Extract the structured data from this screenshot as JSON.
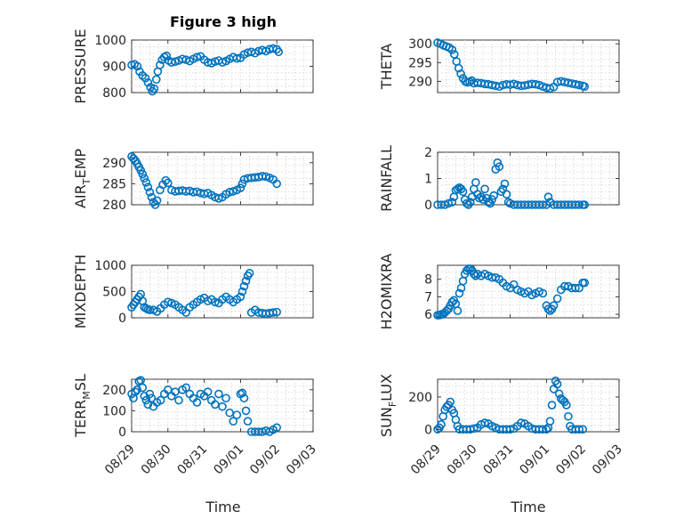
{
  "figure": {
    "title": "Figure 3 high",
    "marker_color": "#0072BD",
    "marker_style": "open-circle",
    "grid": "dotted"
  },
  "chart_data": [
    {
      "type": "scatter",
      "ylabel": "PRESSURE",
      "title": "Figure 3 high",
      "xlim": [
        "08/29",
        "09/03"
      ],
      "ylim": [
        800,
        1000
      ],
      "yticks": [
        "800",
        "900",
        "1000"
      ],
      "xticks": [
        "08/29",
        "08/30",
        "08/31",
        "09/01",
        "09/02",
        "09/03"
      ],
      "x_days": [
        0,
        0.08,
        0.16,
        0.22,
        0.3,
        0.38,
        0.45,
        0.52,
        0.57,
        0.62,
        0.68,
        0.72,
        0.78,
        0.84,
        0.9,
        0.96,
        1.02,
        1.1,
        1.2,
        1.3,
        1.4,
        1.5,
        1.6,
        1.7,
        1.8,
        1.9,
        2.0,
        2.1,
        2.2,
        2.3,
        2.4,
        2.5,
        2.6,
        2.7,
        2.8,
        2.9,
        3.0,
        3.1,
        3.2,
        3.3,
        3.4,
        3.5,
        3.6,
        3.7,
        3.8,
        3.9,
        4.0,
        4.05
      ],
      "values": [
        905,
        908,
        900,
        880,
        865,
        855,
        838,
        820,
        805,
        815,
        850,
        880,
        905,
        925,
        935,
        940,
        922,
        915,
        918,
        922,
        928,
        925,
        920,
        928,
        935,
        938,
        925,
        915,
        912,
        918,
        922,
        915,
        920,
        928,
        935,
        930,
        932,
        945,
        952,
        955,
        950,
        958,
        962,
        958,
        965,
        968,
        965,
        955
      ]
    },
    {
      "type": "scatter",
      "ylabel": "THETA",
      "xlim": [
        "08/29",
        "09/03"
      ],
      "ylim": [
        287,
        301
      ],
      "yticks": [
        "290",
        "295",
        "300"
      ],
      "xticks": [
        "08/29",
        "08/30",
        "08/31",
        "09/01",
        "09/02",
        "09/03"
      ],
      "x_days": [
        0,
        0.08,
        0.16,
        0.24,
        0.32,
        0.4,
        0.46,
        0.52,
        0.58,
        0.64,
        0.7,
        0.76,
        0.82,
        0.88,
        0.94,
        1.0,
        1.1,
        1.2,
        1.3,
        1.4,
        1.5,
        1.6,
        1.7,
        1.8,
        1.9,
        2.0,
        2.1,
        2.2,
        2.3,
        2.4,
        2.5,
        2.6,
        2.7,
        2.8,
        2.9,
        3.0,
        3.1,
        3.2,
        3.3,
        3.4,
        3.5,
        3.6,
        3.7,
        3.8,
        3.9,
        4.0,
        4.05
      ],
      "values": [
        300.3,
        300,
        299.6,
        299.3,
        299,
        298.4,
        297.2,
        295.3,
        293.5,
        292,
        290.8,
        290,
        289.7,
        289.9,
        290.2,
        289.5,
        289.6,
        289.5,
        289.3,
        289.2,
        289,
        288.8,
        288.6,
        289,
        289.2,
        289.1,
        289.3,
        289,
        288.8,
        288.9,
        289.1,
        289.3,
        289.2,
        289,
        288.6,
        288.3,
        288.1,
        288.5,
        289.8,
        290,
        289.8,
        289.6,
        289.4,
        289.2,
        289,
        288.8,
        288.6
      ]
    },
    {
      "type": "scatter",
      "ylabel": "AIR_TEMP",
      "ylabel_display": [
        "AIR",
        "T",
        "EMP"
      ],
      "xlim": [
        "08/29",
        "09/03"
      ],
      "ylim": [
        280,
        292.5
      ],
      "yticks": [
        "280",
        "285",
        "290"
      ],
      "xticks": [
        "08/29",
        "08/30",
        "08/31",
        "09/01",
        "09/02",
        "09/03"
      ],
      "x_days": [
        0,
        0.05,
        0.1,
        0.15,
        0.2,
        0.25,
        0.3,
        0.35,
        0.4,
        0.45,
        0.5,
        0.55,
        0.6,
        0.65,
        0.7,
        0.78,
        0.86,
        0.94,
        1.0,
        1.1,
        1.2,
        1.3,
        1.4,
        1.5,
        1.6,
        1.7,
        1.8,
        1.9,
        2.0,
        2.1,
        2.2,
        2.3,
        2.4,
        2.5,
        2.6,
        2.7,
        2.8,
        2.9,
        3.0,
        3.05,
        3.1,
        3.2,
        3.3,
        3.4,
        3.5,
        3.6,
        3.7,
        3.8,
        3.9,
        4.0
      ],
      "values": [
        291.5,
        291,
        290.5,
        289.8,
        289,
        288.2,
        287.3,
        286.3,
        285.3,
        284.2,
        283,
        281.8,
        280.6,
        280,
        281,
        283.5,
        284.8,
        285.8,
        285.2,
        283.5,
        283.2,
        283.3,
        283.4,
        283.2,
        283.3,
        283,
        283.1,
        282.8,
        282.6,
        282.8,
        282.3,
        281.8,
        281.5,
        281.8,
        282.5,
        283,
        283.2,
        283.5,
        284,
        285,
        286,
        286.3,
        286.4,
        286.5,
        286.6,
        286.8,
        286.7,
        286.4,
        286,
        285
      ]
    },
    {
      "type": "scatter",
      "ylabel": "RAINFALL",
      "xlim": [
        "08/29",
        "09/03"
      ],
      "ylim": [
        0,
        2
      ],
      "yticks": [
        "0",
        "1",
        "2"
      ],
      "xticks": [
        "08/29",
        "08/30",
        "08/31",
        "09/01",
        "09/02",
        "09/03"
      ],
      "x_days": [
        0,
        0.1,
        0.2,
        0.3,
        0.4,
        0.45,
        0.5,
        0.55,
        0.6,
        0.65,
        0.7,
        0.75,
        0.8,
        0.85,
        0.9,
        0.95,
        1.0,
        1.05,
        1.1,
        1.15,
        1.2,
        1.25,
        1.3,
        1.35,
        1.4,
        1.45,
        1.5,
        1.55,
        1.6,
        1.65,
        1.7,
        1.75,
        1.8,
        1.85,
        1.9,
        1.95,
        2.0,
        2.1,
        2.2,
        2.3,
        2.4,
        2.5,
        2.6,
        2.7,
        2.8,
        2.9,
        3.0,
        3.05,
        3.1,
        3.2,
        3.3,
        3.4,
        3.5,
        3.6,
        3.7,
        3.8,
        3.9,
        4.0,
        4.05
      ],
      "values": [
        0,
        0,
        0,
        0.05,
        0.1,
        0.3,
        0.55,
        0.6,
        0.65,
        0.6,
        0.5,
        0.2,
        0.05,
        0,
        0.1,
        0.3,
        0.6,
        0.85,
        0.4,
        0.25,
        0.3,
        0.2,
        0.6,
        0.25,
        0.1,
        0.05,
        0.2,
        0.35,
        1.35,
        1.6,
        1.45,
        0.5,
        0.6,
        0.8,
        0.4,
        0.1,
        0.05,
        0,
        0,
        0,
        0,
        0,
        0,
        0,
        0,
        0,
        0,
        0.3,
        0.1,
        0,
        0,
        0,
        0,
        0,
        0,
        0,
        0,
        0,
        0
      ]
    },
    {
      "type": "scatter",
      "ylabel": "MIXDEPTH",
      "xlim": [
        "08/29",
        "09/03"
      ],
      "ylim": [
        0,
        1000
      ],
      "yticks": [
        "0",
        "500",
        "1000"
      ],
      "xticks": [
        "08/29",
        "08/30",
        "08/31",
        "09/01",
        "09/02",
        "09/03"
      ],
      "x_days": [
        0,
        0.05,
        0.1,
        0.15,
        0.2,
        0.25,
        0.3,
        0.35,
        0.4,
        0.45,
        0.5,
        0.6,
        0.7,
        0.8,
        0.9,
        1.0,
        1.1,
        1.2,
        1.3,
        1.4,
        1.5,
        1.6,
        1.7,
        1.8,
        1.9,
        2.0,
        2.1,
        2.2,
        2.3,
        2.4,
        2.5,
        2.6,
        2.7,
        2.8,
        2.9,
        3.0,
        3.05,
        3.1,
        3.15,
        3.2,
        3.25,
        3.3,
        3.4,
        3.5,
        3.6,
        3.7,
        3.8,
        3.9,
        4.0
      ],
      "values": [
        200,
        250,
        300,
        350,
        400,
        450,
        320,
        200,
        180,
        160,
        150,
        150,
        120,
        180,
        250,
        300,
        280,
        250,
        200,
        150,
        100,
        200,
        250,
        300,
        350,
        380,
        320,
        350,
        300,
        280,
        350,
        400,
        350,
        300,
        350,
        400,
        500,
        600,
        700,
        800,
        850,
        100,
        150,
        100,
        90,
        80,
        90,
        100,
        110
      ]
    },
    {
      "type": "scatter",
      "ylabel": "H2OMIXRA",
      "xlim": [
        "08/29",
        "09/03"
      ],
      "ylim": [
        5.8,
        8.8
      ],
      "yticks": [
        "6",
        "7",
        "8"
      ],
      "xticks": [
        "08/29",
        "08/30",
        "08/31",
        "09/01",
        "09/02",
        "09/03"
      ],
      "x_days": [
        0,
        0.05,
        0.1,
        0.15,
        0.2,
        0.25,
        0.3,
        0.35,
        0.4,
        0.45,
        0.5,
        0.55,
        0.6,
        0.65,
        0.7,
        0.75,
        0.8,
        0.85,
        0.9,
        0.95,
        1.0,
        1.05,
        1.1,
        1.2,
        1.3,
        1.4,
        1.5,
        1.6,
        1.7,
        1.8,
        1.9,
        2.0,
        2.1,
        2.2,
        2.3,
        2.4,
        2.5,
        2.6,
        2.7,
        2.8,
        2.9,
        3.0,
        3.05,
        3.1,
        3.15,
        3.2,
        3.3,
        3.4,
        3.5,
        3.6,
        3.7,
        3.8,
        3.9,
        4.0,
        4.05
      ],
      "values": [
        5.95,
        5.95,
        6,
        6,
        6.1,
        6.2,
        6.3,
        6.5,
        6.7,
        6.8,
        6.6,
        6.2,
        7.2,
        7.5,
        7.9,
        8.3,
        8.5,
        8.6,
        8.6,
        8.5,
        8.3,
        8.2,
        8.3,
        8.2,
        8.3,
        8.2,
        8.1,
        8.1,
        8,
        7.8,
        7.6,
        7.5,
        7.7,
        7.4,
        7.3,
        7.2,
        7.3,
        7.1,
        7.2,
        7.3,
        7.2,
        6.5,
        6.3,
        6.2,
        6.3,
        6.5,
        6.9,
        7.4,
        7.6,
        7.6,
        7.5,
        7.5,
        7.5,
        7.8,
        7.8
      ]
    },
    {
      "type": "scatter",
      "ylabel": "TERR_MSL",
      "ylabel_display": [
        "TERR",
        "M",
        "SL"
      ],
      "xlim": [
        "08/29",
        "09/03"
      ],
      "ylim": [
        0,
        250
      ],
      "yticks": [
        "0",
        "100",
        "200"
      ],
      "xticks": [
        "08/29",
        "08/30",
        "08/31",
        "09/01",
        "09/02",
        "09/03"
      ],
      "x_days": [
        0,
        0.05,
        0.1,
        0.15,
        0.2,
        0.25,
        0.3,
        0.35,
        0.4,
        0.45,
        0.5,
        0.55,
        0.6,
        0.7,
        0.8,
        0.9,
        1.0,
        1.1,
        1.2,
        1.3,
        1.4,
        1.5,
        1.6,
        1.7,
        1.8,
        1.9,
        2.0,
        2.1,
        2.2,
        2.3,
        2.4,
        2.5,
        2.6,
        2.7,
        2.8,
        2.9,
        3.0,
        3.05,
        3.1,
        3.15,
        3.2,
        3.3,
        3.4,
        3.5,
        3.6,
        3.7,
        3.8,
        3.9,
        4.0
      ],
      "values": [
        180,
        160,
        190,
        200,
        240,
        245,
        210,
        170,
        150,
        130,
        180,
        160,
        120,
        140,
        150,
        180,
        200,
        170,
        190,
        150,
        200,
        210,
        180,
        160,
        140,
        180,
        170,
        190,
        150,
        130,
        180,
        120,
        160,
        90,
        50,
        80,
        180,
        185,
        160,
        100,
        50,
        0,
        0,
        0,
        0,
        5,
        0,
        10,
        20
      ]
    },
    {
      "type": "scatter",
      "ylabel": "SUN_FLUX",
      "ylabel_display": [
        "SUN",
        "F",
        "LUX"
      ],
      "xlim": [
        "08/29",
        "09/03"
      ],
      "ylim": [
        -15,
        310
      ],
      "yticks": [
        "0",
        "200"
      ],
      "xticks": [
        "08/29",
        "08/30",
        "08/31",
        "09/01",
        "09/02",
        "09/03"
      ],
      "x_days": [
        0,
        0.05,
        0.1,
        0.15,
        0.2,
        0.25,
        0.3,
        0.35,
        0.4,
        0.45,
        0.5,
        0.55,
        0.6,
        0.7,
        0.8,
        0.9,
        1.0,
        1.1,
        1.2,
        1.3,
        1.4,
        1.5,
        1.6,
        1.7,
        1.8,
        1.9,
        2.0,
        2.1,
        2.2,
        2.3,
        2.4,
        2.5,
        2.6,
        2.7,
        2.8,
        2.9,
        3.0,
        3.05,
        3.1,
        3.15,
        3.2,
        3.25,
        3.3,
        3.35,
        3.4,
        3.45,
        3.5,
        3.55,
        3.6,
        3.65,
        3.7,
        3.8,
        3.9,
        4.0
      ],
      "values": [
        0,
        10,
        30,
        80,
        120,
        140,
        150,
        170,
        120,
        100,
        60,
        20,
        0,
        0,
        0,
        0,
        5,
        10,
        30,
        40,
        35,
        20,
        10,
        0,
        0,
        0,
        0,
        5,
        20,
        40,
        35,
        20,
        5,
        0,
        0,
        0,
        0,
        10,
        50,
        150,
        250,
        300,
        280,
        220,
        190,
        180,
        170,
        150,
        80,
        20,
        0,
        0,
        0,
        0
      ]
    }
  ],
  "xlabel": "Time"
}
